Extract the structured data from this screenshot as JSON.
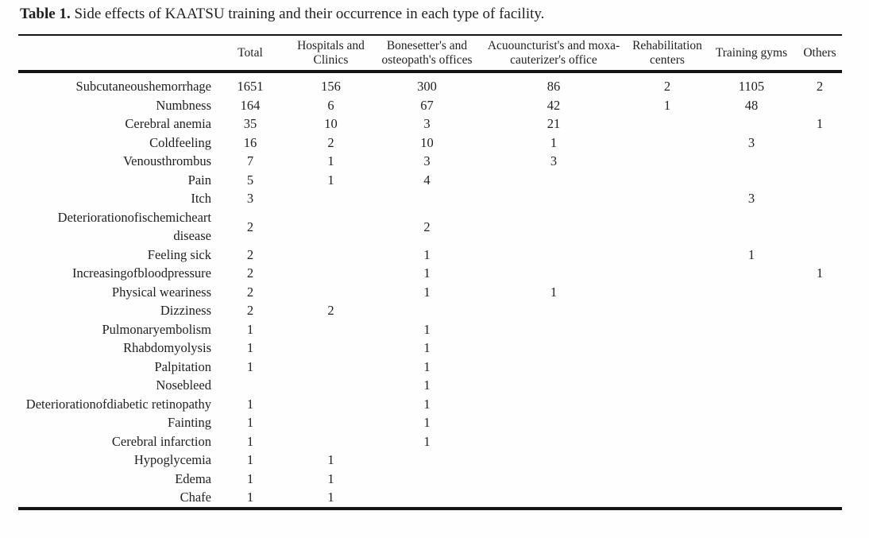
{
  "caption": {
    "label": "Table 1.",
    "text": "Side effects of KAATSU training and their occurrence in each type of facility."
  },
  "table": {
    "columns": [
      "",
      "Total",
      "Hospitals and Clinics",
      "Bonesetter's and osteopath's offices",
      "Acuouncturist's and moxa-cauterizer's office",
      "Rehabilitation centers",
      "Training gyms",
      "Others"
    ],
    "rows": [
      {
        "label": "Subcutaneoushemorrhage",
        "values": [
          "1651",
          "156",
          "300",
          "86",
          "2",
          "1105",
          "2"
        ]
      },
      {
        "label": "Numbness",
        "values": [
          "164",
          "6",
          "67",
          "42",
          "1",
          "48",
          ""
        ]
      },
      {
        "label": "Cerebral anemia",
        "values": [
          "35",
          "10",
          "3",
          "21",
          "",
          "",
          "1"
        ]
      },
      {
        "label": "Coldfeeling",
        "values": [
          "16",
          "2",
          "10",
          "1",
          "",
          "3",
          ""
        ]
      },
      {
        "label": "Venousthrombus",
        "values": [
          "7",
          "1",
          "3",
          "3",
          "",
          "",
          ""
        ]
      },
      {
        "label": "Pain",
        "values": [
          "5",
          "1",
          "4",
          "",
          "",
          "",
          ""
        ]
      },
      {
        "label": "Itch",
        "values": [
          "3",
          "",
          "",
          "",
          "",
          "3",
          ""
        ]
      },
      {
        "label": "Deteriorationofischemicheart disease",
        "values": [
          "2",
          "",
          "2",
          "",
          "",
          "",
          ""
        ]
      },
      {
        "label": "Feeling sick",
        "values": [
          "2",
          "",
          "1",
          "",
          "",
          "1",
          ""
        ]
      },
      {
        "label": "Increasingofbloodpressure",
        "values": [
          "2",
          "",
          "1",
          "",
          "",
          "",
          "1"
        ]
      },
      {
        "label": "Physical weariness",
        "values": [
          "2",
          "",
          "1",
          "1",
          "",
          "",
          ""
        ]
      },
      {
        "label": "Dizziness",
        "values": [
          "2",
          "2",
          "",
          "",
          "",
          "",
          ""
        ]
      },
      {
        "label": "Pulmonaryembolism",
        "values": [
          "1",
          "",
          "1",
          "",
          "",
          "",
          ""
        ]
      },
      {
        "label": "Rhabdomyolysis",
        "values": [
          "1",
          "",
          "1",
          "",
          "",
          "",
          ""
        ]
      },
      {
        "label": "Palpitation",
        "values": [
          "1",
          "",
          "1",
          "",
          "",
          "",
          ""
        ]
      },
      {
        "label": "Nosebleed",
        "values": [
          "",
          "",
          "1",
          "",
          "",
          "",
          ""
        ]
      },
      {
        "label": "Deteriorationofdiabetic retinopathy",
        "values": [
          "1",
          "",
          "1",
          "",
          "",
          "",
          ""
        ]
      },
      {
        "label": "Fainting",
        "values": [
          "1",
          "",
          "1",
          "",
          "",
          "",
          ""
        ]
      },
      {
        "label": "Cerebral infarction",
        "values": [
          "1",
          "",
          "1",
          "",
          "",
          "",
          ""
        ]
      },
      {
        "label": "Hypoglycemia",
        "values": [
          "1",
          "1",
          "",
          "",
          "",
          "",
          ""
        ]
      },
      {
        "label": "Edema",
        "values": [
          "1",
          "1",
          "",
          "",
          "",
          "",
          ""
        ]
      },
      {
        "label": "Chafe",
        "values": [
          "1",
          "1",
          "",
          "",
          "",
          "",
          ""
        ]
      }
    ]
  },
  "colors": {
    "rule": "#141414",
    "text": "#1f1f1f",
    "background": "#fefefe"
  }
}
